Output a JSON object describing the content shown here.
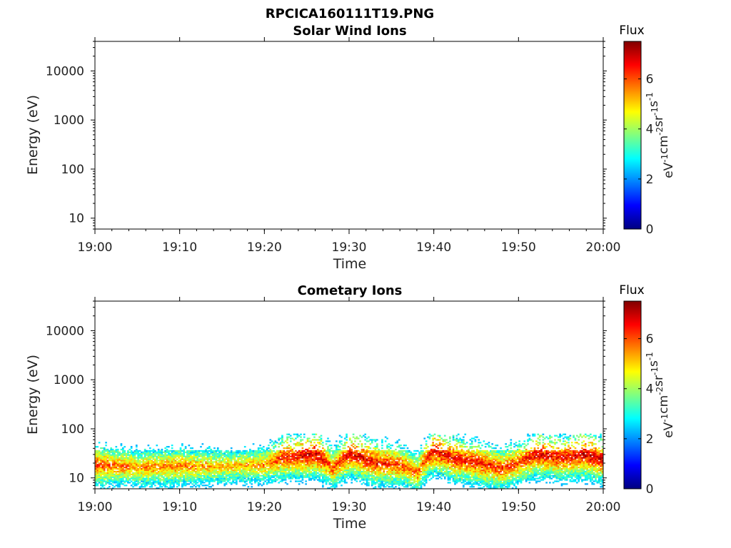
{
  "figure": {
    "title": "RPCICA160111T19.PNG"
  },
  "colorbar": {
    "title": "Flux",
    "unit_parts": [
      "eV",
      "-1",
      "cm",
      "-2",
      "sr",
      "-1",
      "s",
      "-1"
    ],
    "range": [
      0,
      7.5
    ],
    "ticks": [
      "0",
      "2",
      "4",
      "6"
    ],
    "colormap": "jet"
  },
  "chart_data": [
    {
      "type": "heatmap",
      "title": "Solar Wind Ions",
      "xlabel": "Time",
      "ylabel": "Energy (eV)",
      "x_range": [
        "19:00",
        "20:00"
      ],
      "x_ticks": [
        "19:00",
        "19:10",
        "19:20",
        "19:30",
        "19:40",
        "19:50",
        "20:00"
      ],
      "y_scale": "log",
      "y_range": [
        6,
        40000
      ],
      "y_ticks": [
        10,
        100,
        1000,
        10000
      ],
      "y_tick_labels": [
        "10",
        "100",
        "1000",
        "10000"
      ],
      "color_label": "Flux",
      "color_range": [
        0,
        7.5
      ],
      "grid": false,
      "cells": []
    },
    {
      "type": "heatmap",
      "title": "Cometary Ions",
      "xlabel": "Time",
      "ylabel": "Energy (eV)",
      "x_range": [
        "19:00",
        "20:00"
      ],
      "x_ticks": [
        "19:00",
        "19:10",
        "19:20",
        "19:30",
        "19:40",
        "19:50",
        "20:00"
      ],
      "y_scale": "log",
      "y_range": [
        6,
        40000
      ],
      "y_ticks": [
        10,
        100,
        1000,
        10000
      ],
      "y_tick_labels": [
        "10",
        "100",
        "1000",
        "10000"
      ],
      "color_label": "Flux",
      "color_range": [
        0,
        7.5
      ],
      "grid": false,
      "band_energy_range": [
        6,
        80
      ],
      "band_peak_energy_profile": [
        [
          "19:00",
          18
        ],
        [
          "19:05",
          16
        ],
        [
          "19:10",
          17
        ],
        [
          "19:15",
          17
        ],
        [
          "19:20",
          18
        ],
        [
          "19:22",
          25
        ],
        [
          "19:26",
          30
        ],
        [
          "19:28",
          15
        ],
        [
          "19:30",
          30
        ],
        [
          "19:33",
          20
        ],
        [
          "19:36",
          18
        ],
        [
          "19:38",
          12
        ],
        [
          "19:40",
          35
        ],
        [
          "19:42",
          25
        ],
        [
          "19:45",
          20
        ],
        [
          "19:48",
          15
        ],
        [
          "19:50",
          20
        ],
        [
          "19:52",
          30
        ],
        [
          "19:55",
          25
        ],
        [
          "19:58",
          30
        ],
        [
          "20:00",
          22
        ]
      ],
      "band_peak_flux_profile": [
        [
          "19:00",
          6.2
        ],
        [
          "19:05",
          5.6
        ],
        [
          "19:10",
          5.8
        ],
        [
          "19:15",
          5.3
        ],
        [
          "19:20",
          5.5
        ],
        [
          "19:22",
          6.5
        ],
        [
          "19:26",
          7.0
        ],
        [
          "19:28",
          6.0
        ],
        [
          "19:30",
          6.8
        ],
        [
          "19:33",
          6.6
        ],
        [
          "19:36",
          6.2
        ],
        [
          "19:38",
          5.8
        ],
        [
          "19:40",
          6.8
        ],
        [
          "19:42",
          6.7
        ],
        [
          "19:45",
          6.5
        ],
        [
          "19:48",
          6.3
        ],
        [
          "19:50",
          6.2
        ],
        [
          "19:52",
          6.8
        ],
        [
          "19:55",
          6.6
        ],
        [
          "19:58",
          7.0
        ],
        [
          "20:00",
          6.8
        ]
      ]
    }
  ]
}
